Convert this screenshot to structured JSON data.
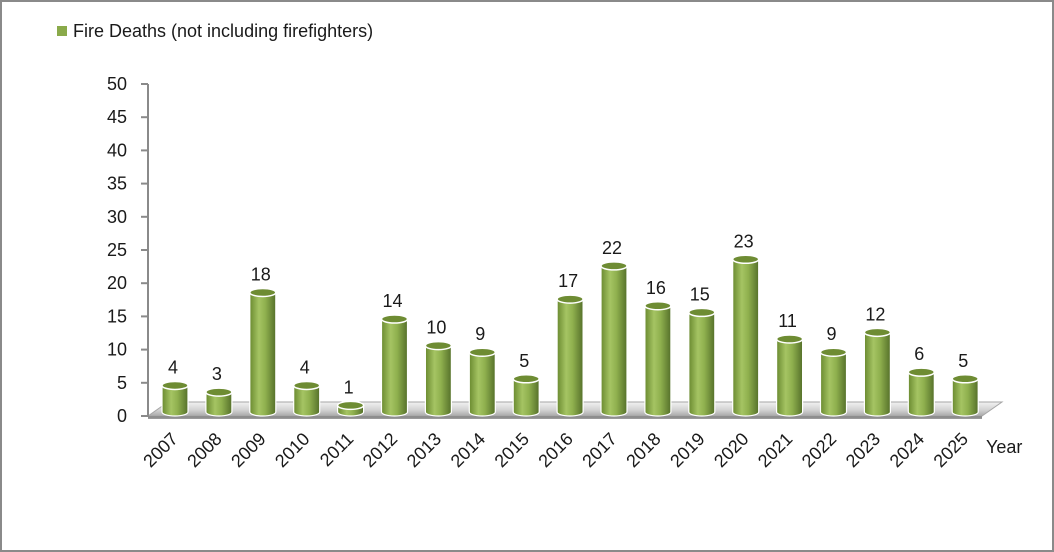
{
  "chart_data": {
    "type": "bar",
    "title": "",
    "xlabel": "Year",
    "ylabel": "",
    "ylim": [
      0,
      50
    ],
    "yticks": [
      0,
      5,
      10,
      15,
      20,
      25,
      30,
      35,
      40,
      45,
      50
    ],
    "grid": false,
    "legend_position": "top-left",
    "categories": [
      "2007",
      "2008",
      "2009",
      "2010",
      "2011",
      "2012",
      "2013",
      "2014",
      "2015",
      "2016",
      "2017",
      "2018",
      "2019",
      "2020",
      "2021",
      "2022",
      "2023",
      "2024",
      "2025"
    ],
    "series": [
      {
        "name": "Fire Deaths (not including firefighters)",
        "values": [
          4,
          3,
          18,
          4,
          1,
          14,
          10,
          9,
          5,
          17,
          22,
          16,
          15,
          23,
          11,
          9,
          12,
          6,
          5
        ],
        "color": "#8aaa4a"
      }
    ],
    "style": "3d-cylinder"
  },
  "colors": {
    "bar_light": "#a3c25f",
    "bar_mid": "#7f9f3f",
    "bar_dark": "#5a7427",
    "bar_top": "#6e8c33",
    "axis": "#8a8a8a",
    "floor": "#d9d9d9",
    "floor_edge": "#a6a6a6",
    "legend_swatch": "#8aaa4a"
  }
}
